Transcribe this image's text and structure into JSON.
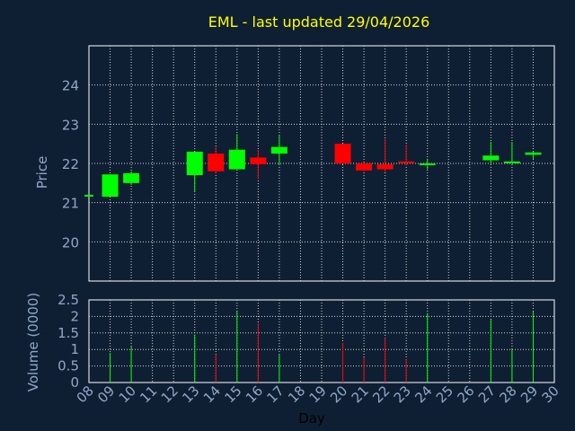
{
  "colors": {
    "background": "#0f1f33",
    "up": "#00ff00",
    "down": "#ff0000",
    "title": "#ffff00",
    "axis_text": "#8fa8c8",
    "day_label": "#000000"
  },
  "chart_data": [
    {
      "type": "candlestick",
      "title": "EML - last updated 29/04/2026",
      "xlabel": "",
      "ylabel": "Price",
      "ylim": [
        19.0,
        25.0
      ],
      "yticks": [
        20,
        21,
        22,
        23,
        24
      ],
      "grid": true,
      "x": [
        "08",
        "09",
        "10",
        "13",
        "14",
        "15",
        "16",
        "17",
        "20",
        "21",
        "22",
        "23",
        "24",
        "27",
        "28",
        "29"
      ],
      "open": [
        21.2,
        21.15,
        21.5,
        21.7,
        22.25,
        21.85,
        22.15,
        22.25,
        22.5,
        22.0,
        21.98,
        22.05,
        22.0,
        22.08,
        22.02,
        22.22
      ],
      "high": [
        21.2,
        21.72,
        21.8,
        22.3,
        22.42,
        22.75,
        22.35,
        22.72,
        22.5,
        22.02,
        22.62,
        22.48,
        22.12,
        22.55,
        22.55,
        22.3
      ],
      "low": [
        21.2,
        21.15,
        21.45,
        21.28,
        21.75,
        21.85,
        21.6,
        21.95,
        22.0,
        21.8,
        21.78,
        21.95,
        21.85,
        22.0,
        22.0,
        22.1
      ],
      "close": [
        21.2,
        21.72,
        21.75,
        22.3,
        21.8,
        22.35,
        21.98,
        22.42,
        22.0,
        21.82,
        21.85,
        22.02,
        22.0,
        22.2,
        22.05,
        22.28
      ]
    },
    {
      "type": "bar",
      "xlabel": "Day",
      "ylabel": "Volume (0000)",
      "ylim": [
        0,
        2.5
      ],
      "yticks": [
        "0",
        "0.5",
        "1",
        "1.5",
        "2",
        "2.5"
      ],
      "grid": true,
      "x": [
        "08",
        "09",
        "10",
        "13",
        "14",
        "15",
        "16",
        "17",
        "20",
        "21",
        "22",
        "23",
        "24",
        "27",
        "28",
        "29"
      ],
      "values": [
        0.0,
        0.9,
        1.1,
        1.45,
        0.85,
        2.15,
        1.8,
        0.85,
        1.2,
        0.75,
        1.35,
        0.7,
        2.1,
        1.9,
        1.0,
        2.15
      ],
      "direction": [
        "down",
        "up",
        "up",
        "up",
        "down",
        "up",
        "down",
        "up",
        "down",
        "down",
        "down",
        "down",
        "up",
        "up",
        "up",
        "up"
      ]
    }
  ],
  "day_ticks": [
    "08",
    "09",
    "10",
    "11",
    "12",
    "13",
    "14",
    "15",
    "16",
    "17",
    "18",
    "19",
    "20",
    "21",
    "22",
    "23",
    "24",
    "25",
    "26",
    "27",
    "28",
    "29",
    "30"
  ]
}
